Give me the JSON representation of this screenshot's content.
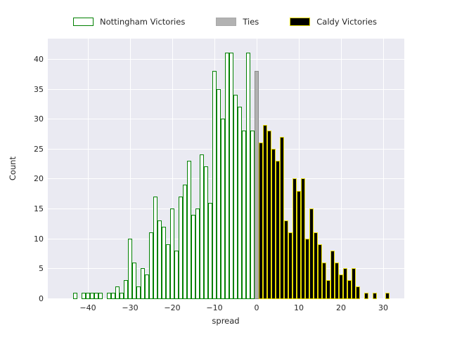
{
  "chart_data": {
    "type": "bar",
    "subtype": "histogram",
    "title": "",
    "xlabel": "spread",
    "ylabel": "Count",
    "grid": true,
    "legend_position": "top-center",
    "plot_bg_color": "#eaeaf2",
    "grid_color": "#ffffff",
    "text_color": "#262626",
    "xlim": [
      -49.5,
      35
    ],
    "ylim": [
      0,
      43.5
    ],
    "x_tick_values": [
      -40,
      -30,
      -20,
      -10,
      0,
      10,
      20,
      30
    ],
    "x_tick_labels": [
      "−40",
      "−30",
      "−20",
      "−10",
      "0",
      "10",
      "20",
      "30"
    ],
    "y_tick_values": [
      0,
      5,
      10,
      15,
      20,
      25,
      30,
      35,
      40
    ],
    "y_tick_labels": [
      "0",
      "5",
      "10",
      "15",
      "20",
      "25",
      "30",
      "35",
      "40"
    ],
    "series": [
      {
        "name": "Nottingham Victories",
        "fill": "#ffffff",
        "edge": "#008000",
        "spreads": [
          -43,
          -42,
          -41,
          -40,
          -39,
          -38,
          -37,
          -36,
          -35,
          -34,
          -33,
          -32,
          -31,
          -30,
          -29,
          -28,
          -27,
          -26,
          -25,
          -24,
          -23,
          -22,
          -21,
          -20,
          -19,
          -18,
          -17,
          -16,
          -15,
          -14,
          -13,
          -12,
          -11,
          -10,
          -9,
          -8,
          -7,
          -6,
          -5,
          -4,
          -3,
          -2,
          -1
        ],
        "counts": [
          1,
          0,
          1,
          1,
          1,
          1,
          1,
          0,
          1,
          1,
          2,
          1,
          3,
          10,
          6,
          2,
          5,
          4,
          11,
          17,
          13,
          12,
          9,
          15,
          8,
          17,
          19,
          23,
          14,
          15,
          24,
          22,
          16,
          38,
          35,
          30,
          41,
          41,
          34,
          32,
          28,
          41,
          28
        ]
      },
      {
        "name": "Ties",
        "fill": "#b2b2b2",
        "edge": "#8a8a8a",
        "spreads": [
          0
        ],
        "counts": [
          38
        ]
      },
      {
        "name": "Caldy Victories",
        "fill": "#000000",
        "edge": "#e6dc00",
        "spreads": [
          1,
          2,
          3,
          4,
          5,
          6,
          7,
          8,
          9,
          10,
          11,
          12,
          13,
          14,
          15,
          16,
          17,
          18,
          19,
          20,
          21,
          22,
          23,
          24,
          25,
          26,
          27,
          28,
          29,
          30,
          31
        ],
        "counts": [
          26,
          29,
          28,
          25,
          23,
          27,
          13,
          11,
          20,
          18,
          20,
          10,
          15,
          11,
          9,
          6,
          3,
          8,
          6,
          4,
          5,
          3,
          5,
          2,
          0,
          1,
          0,
          1,
          0,
          0,
          1
        ]
      }
    ]
  }
}
